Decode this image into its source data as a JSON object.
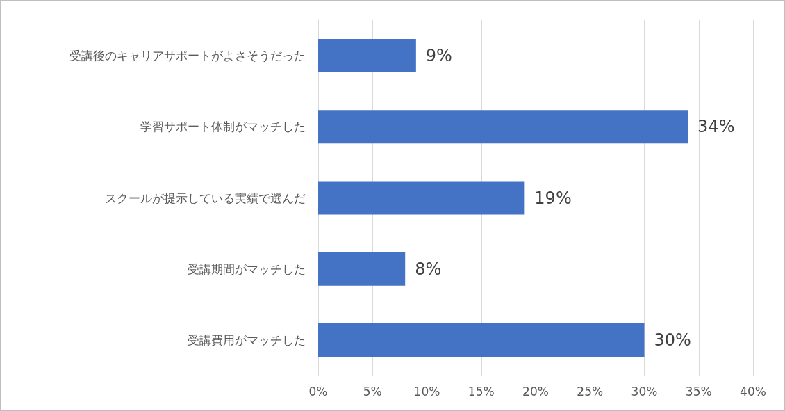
{
  "chart_data": {
    "type": "bar",
    "orientation": "horizontal",
    "categories": [
      "受講後のキャリアサポートがよさそうだった",
      "学習サポート体制がマッチした",
      "スクールが提示している実績で選んだ",
      "受講期間がマッチした",
      "受講費用がマッチした"
    ],
    "values": [
      9,
      34,
      19,
      8,
      30
    ],
    "value_labels": [
      "9%",
      "34%",
      "19%",
      "8%",
      "30%"
    ],
    "color": "#4472c4",
    "xlim": [
      0,
      40
    ],
    "xticks": [
      {
        "value": 0,
        "label": "0%"
      },
      {
        "value": 5,
        "label": "5%"
      },
      {
        "value": 10,
        "label": "10%"
      },
      {
        "value": 15,
        "label": "15%"
      },
      {
        "value": 20,
        "label": "20%"
      },
      {
        "value": 25,
        "label": "25%"
      },
      {
        "value": 30,
        "label": "30%"
      },
      {
        "value": 35,
        "label": "35%"
      },
      {
        "value": 40,
        "label": "40%"
      }
    ],
    "grid": "x"
  }
}
